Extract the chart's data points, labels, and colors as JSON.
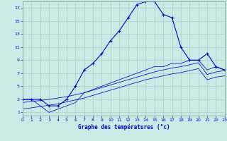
{
  "xlabel": "Graphe des températures (°c)",
  "background_color": "#c8ebe6",
  "grid_color": "#a8ccc8",
  "line_color": "#0000cc",
  "xlim": [
    0,
    23
  ],
  "ylim": [
    0.5,
    18
  ],
  "xticks": [
    0,
    1,
    2,
    3,
    4,
    5,
    6,
    7,
    8,
    9,
    10,
    11,
    12,
    13,
    14,
    15,
    16,
    17,
    18,
    19,
    20,
    21,
    22,
    23
  ],
  "yticks": [
    1,
    3,
    5,
    7,
    9,
    11,
    13,
    15,
    17
  ],
  "hours": [
    0,
    1,
    2,
    3,
    4,
    5,
    6,
    7,
    8,
    9,
    10,
    11,
    12,
    13,
    14,
    15,
    16,
    17,
    18,
    19,
    20,
    21,
    22,
    23
  ],
  "temp_main": [
    3.0,
    3.0,
    3.0,
    2.0,
    2.0,
    3.0,
    5.0,
    7.5,
    8.5,
    10.0,
    12.0,
    13.5,
    15.5,
    17.5,
    18.0,
    18.0,
    16.0,
    15.5,
    11.0,
    9.0,
    9.0,
    10.0,
    8.0,
    7.5
  ],
  "temp_dew": [
    3.0,
    3.0,
    2.0,
    1.0,
    1.5,
    2.0,
    2.5,
    4.0,
    4.5,
    5.0,
    5.5,
    6.0,
    6.5,
    7.0,
    7.5,
    8.0,
    8.0,
    8.5,
    8.5,
    9.0,
    9.0,
    7.5,
    8.0,
    7.5
  ],
  "temp_avg": [
    2.5,
    2.7,
    2.8,
    3.0,
    3.2,
    3.4,
    3.7,
    4.0,
    4.4,
    4.8,
    5.2,
    5.6,
    6.0,
    6.4,
    6.8,
    7.2,
    7.5,
    7.8,
    8.0,
    8.3,
    8.6,
    6.8,
    7.2,
    7.4
  ],
  "temp_min": [
    1.5,
    1.7,
    1.9,
    2.1,
    2.3,
    2.6,
    2.9,
    3.2,
    3.6,
    4.0,
    4.4,
    4.8,
    5.2,
    5.6,
    6.0,
    6.3,
    6.6,
    6.9,
    7.1,
    7.4,
    7.7,
    6.0,
    6.4,
    6.6
  ]
}
